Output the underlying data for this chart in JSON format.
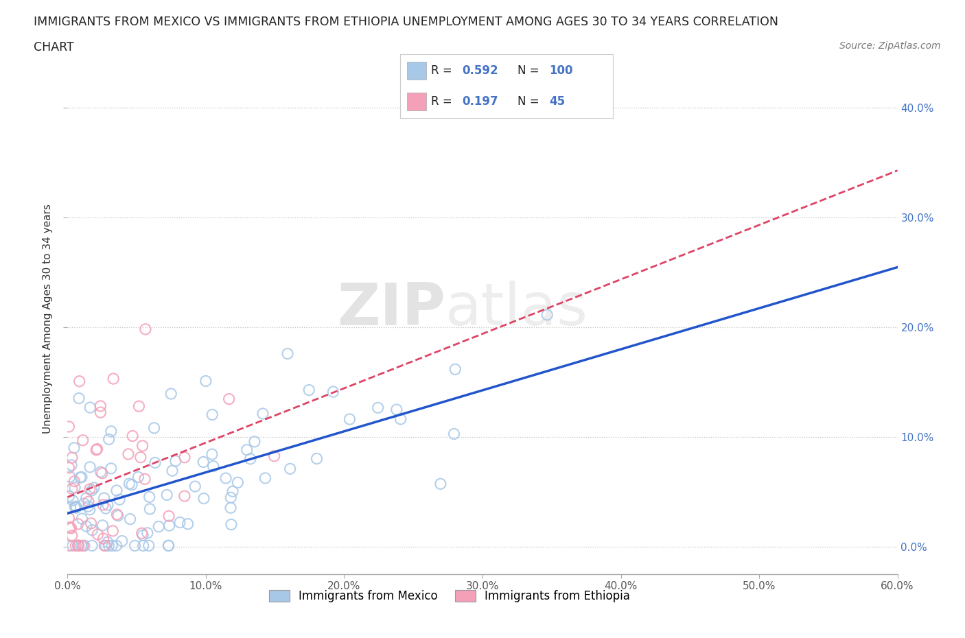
{
  "title_line1": "IMMIGRANTS FROM MEXICO VS IMMIGRANTS FROM ETHIOPIA UNEMPLOYMENT AMONG AGES 30 TO 34 YEARS CORRELATION",
  "title_line2": "CHART",
  "source": "Source: ZipAtlas.com",
  "ylabel": "Unemployment Among Ages 30 to 34 years",
  "xlim": [
    0.0,
    0.6
  ],
  "ylim": [
    -0.025,
    0.44
  ],
  "yticks": [
    0.0,
    0.1,
    0.2,
    0.3,
    0.4
  ],
  "ytick_labels": [
    "0.0%",
    "10.0%",
    "20.0%",
    "30.0%",
    "40.0%"
  ],
  "xticks": [
    0.0,
    0.1,
    0.2,
    0.3,
    0.4,
    0.5,
    0.6
  ],
  "xtick_labels": [
    "0.0%",
    "10.0%",
    "20.0%",
    "30.0%",
    "40.0%",
    "50.0%",
    "60.0%"
  ],
  "mexico_color": "#a8c8e8",
  "ethiopia_color": "#f4a0b8",
  "mexico_line_color": "#2255cc",
  "ethiopia_line_color": "#dd4466",
  "R_mexico": 0.592,
  "N_mexico": 100,
  "R_ethiopia": 0.197,
  "N_ethiopia": 45,
  "legend_label_mexico": "Immigrants from Mexico",
  "legend_label_ethiopia": "Immigrants from Ethiopia",
  "watermark_zip": "ZIP",
  "watermark_atlas": "atlas",
  "background_color": "#ffffff"
}
